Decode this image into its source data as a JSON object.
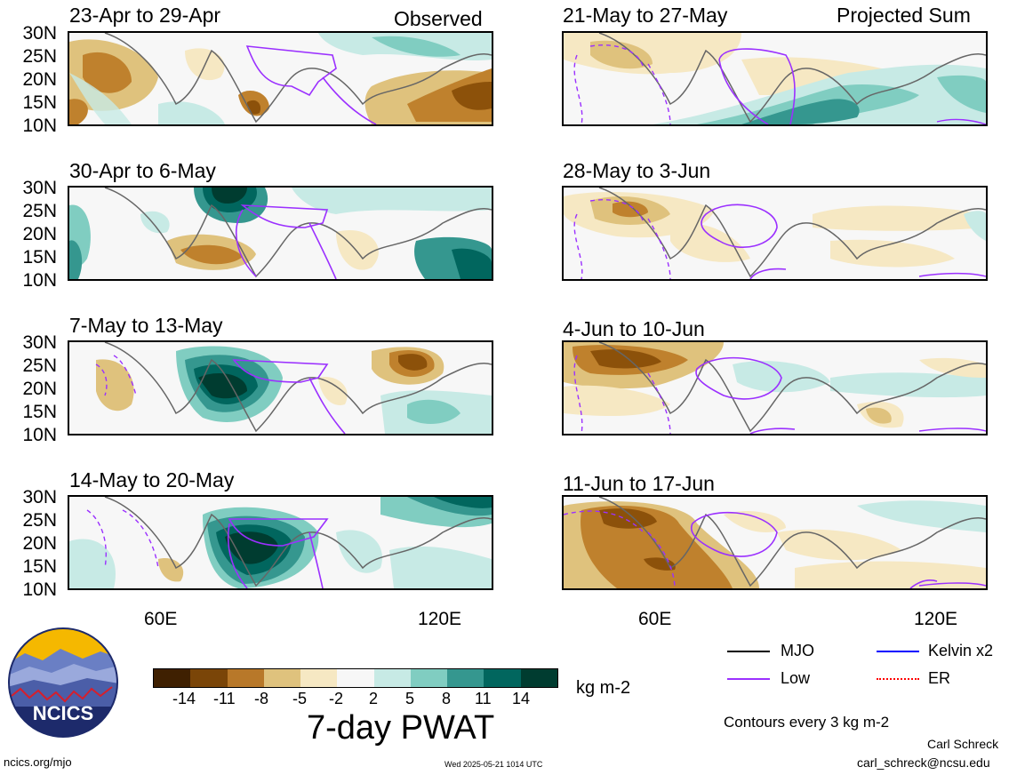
{
  "colors": {
    "dry3": "#543005",
    "dry2": "#8c510a",
    "dry1": "#bf812d",
    "dry0": "#dfc27d",
    "dryL": "#f6e8c3",
    "neutral": "#f5f5f5",
    "wetL": "#c7eae5",
    "wet0": "#80cdc1",
    "wet1": "#35978f",
    "wet2": "#01665e",
    "wet3": "#003c30",
    "mjo": "#000000",
    "low": "#9b30ff",
    "kelvin": "#0000ff",
    "er": "#ff0000",
    "coast": "#666666"
  },
  "headers": {
    "left": "Observed",
    "right": "Projected Sum"
  },
  "panels_left": [
    "23-Apr to 29-Apr",
    "30-Apr to 6-May",
    "7-May to 13-May",
    "14-May to 20-May"
  ],
  "panels_right": [
    "21-May to 27-May",
    "28-May to 3-Jun",
    "4-Jun to 10-Jun",
    "11-Jun to 17-Jun"
  ],
  "lat_labels": [
    "30N",
    "25N",
    "20N",
    "15N",
    "10N"
  ],
  "lon_labels": [
    "60E",
    "120E"
  ],
  "colorbar": {
    "ticks": [
      "-14",
      "-11",
      "-8",
      "-5",
      "-2",
      "2",
      "5",
      "8",
      "11",
      "14"
    ],
    "units": "kg m-2",
    "title": "7-day PWAT"
  },
  "legend": {
    "mjo": "MJO",
    "kelvin": "Kelvin x2",
    "low": "Low",
    "er": "ER",
    "contours": "Contours every 3 kg m-2"
  },
  "logo_text": "NCICS",
  "footer": {
    "url": "ncics.org/mjo",
    "timestamp": "Wed 2025-05-21 1014 UTC",
    "author": "Carl Schreck",
    "email": "carl_schreck@ncsu.edu"
  }
}
